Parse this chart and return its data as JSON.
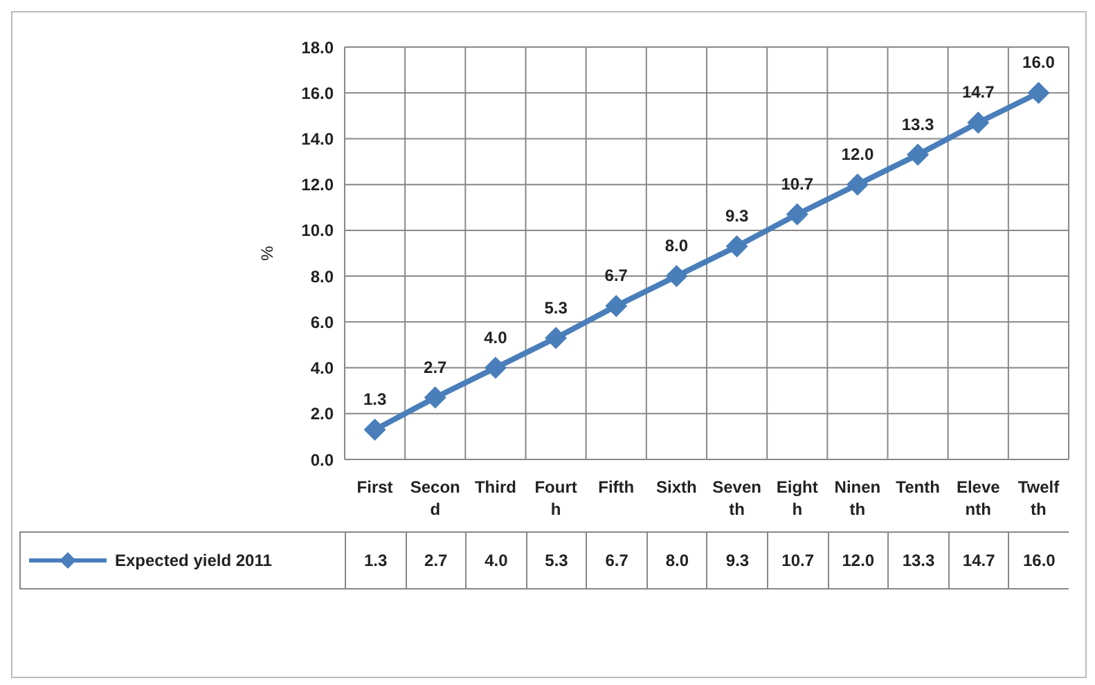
{
  "chart_data": {
    "type": "line",
    "ylabel": "%",
    "categories": [
      "First",
      "Second",
      "Third",
      "Fourth",
      "Fifth",
      "Sixth",
      "Seventh",
      "Eighth",
      "Ninenth",
      "Tenth",
      "Eleventh",
      "Twelfth"
    ],
    "series": [
      {
        "name": "Expected yield 2011",
        "color": "#4a7ebb",
        "values": [
          1.3,
          2.7,
          4.0,
          5.3,
          6.7,
          8.0,
          9.3,
          10.7,
          12.0,
          13.3,
          14.7,
          16.0
        ],
        "value_labels": [
          "1.3",
          "2.7",
          "4.0",
          "5.3",
          "6.7",
          "8.0",
          "9.3",
          "10.7",
          "12.0",
          "13.3",
          "14.7",
          "16.0"
        ]
      }
    ],
    "ylim": [
      0,
      18
    ],
    "yticks": [
      {
        "value": 0,
        "label": "0.0"
      },
      {
        "value": 2,
        "label": "2.0"
      },
      {
        "value": 4,
        "label": "4.0"
      },
      {
        "value": 6,
        "label": "6.0"
      },
      {
        "value": 8,
        "label": "8.0"
      },
      {
        "value": 10,
        "label": "10.0"
      },
      {
        "value": 12,
        "label": "12.0"
      },
      {
        "value": 14,
        "label": "14.0"
      },
      {
        "value": 16,
        "label": "16.0"
      },
      {
        "value": 18,
        "label": "18.0"
      }
    ],
    "grid": true,
    "legend": "bottom",
    "marker": "diamond",
    "line_style": "solid"
  }
}
